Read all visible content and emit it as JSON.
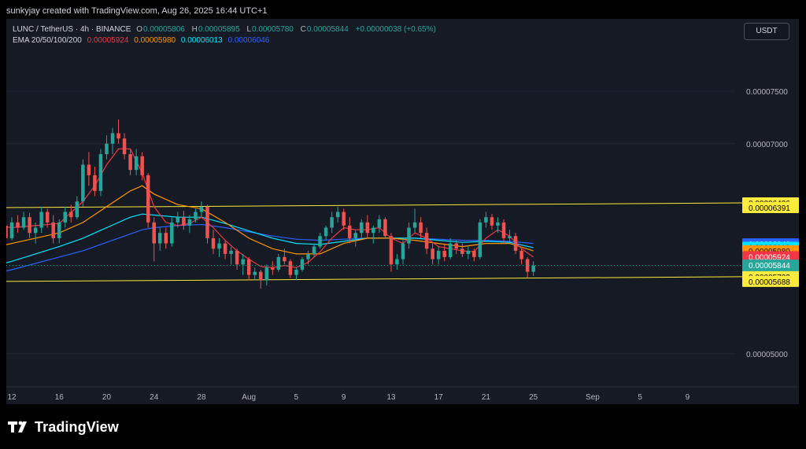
{
  "header": {
    "text": "sunkyjay created with TradingView.com, Aug 26, 2025 16:44 UTC+1"
  },
  "legend": {
    "symbol": "LUNC / TetherUS · 4h · BINANCE",
    "open_label": "O",
    "open": "0.00005806",
    "high_label": "H",
    "high": "0.00005895",
    "low_label": "L",
    "low": "0.00005780",
    "close_label": "C",
    "close": "0.00005844",
    "change": "+0.00000038 (+0.65%)",
    "ema_label": "EMA 20/50/100/200",
    "ema20": "0.00005924",
    "ema50": "0.00005980",
    "ema100": "0.00006013",
    "ema200": "0.00006046"
  },
  "currency_button": "USDT",
  "brand": "TradingView",
  "colors": {
    "background": "#161a25",
    "up": "#26a69a",
    "down": "#ef5350",
    "ema20": "#f23645",
    "ema50": "#ff9800",
    "ema100": "#00e5ff",
    "ema200": "#2962ff",
    "channel": "#ffeb3b"
  },
  "chart_data": {
    "type": "candlestick",
    "symbol": "LUNC / TetherUS",
    "interval": "4h",
    "exchange": "BINANCE",
    "y_ticks": [
      "0.00007500",
      "0.00007000",
      "0.00005000"
    ],
    "x_ticks": [
      "12",
      "16",
      "20",
      "24",
      "28",
      "Aug",
      "5",
      "9",
      "13",
      "17",
      "21",
      "25",
      "Sep",
      "5",
      "9"
    ],
    "price_labels": [
      {
        "value": "0.00006436",
        "kind": "channel",
        "color": "#ffeb3b"
      },
      {
        "value": "0.00006391",
        "kind": "channel",
        "color": "#ffeb3b"
      },
      {
        "value": "0.00006046",
        "kind": "EMA 200",
        "color": "#2962ff"
      },
      {
        "value": "0.00006013",
        "kind": "EMA 100",
        "color": "#00e5ff"
      },
      {
        "value": "0.00005980",
        "kind": "EMA 50",
        "color": "#ff9800"
      },
      {
        "value": "0.00005924",
        "kind": "EMA 20",
        "color": "#f23645"
      },
      {
        "value": "0.00005844",
        "kind": "last price",
        "color": "#26a69a"
      },
      {
        "value": "0.00005733",
        "kind": "channel",
        "color": "#ffeb3b"
      },
      {
        "value": "0.00005688",
        "kind": "channel",
        "color": "#ffeb3b"
      }
    ],
    "countdown": "15:44",
    "channel": {
      "upper": {
        "start": "0.00006391",
        "end": "0.00006436"
      },
      "lower": {
        "start": "0.00005688",
        "end": "0.00005733"
      }
    },
    "candles": [
      {
        "day": 10.0,
        "o": 6.34,
        "h": 6.38,
        "l": 6.03,
        "c": 6.08
      },
      {
        "day": 10.5,
        "o": 6.08,
        "h": 6.2,
        "l": 6.0,
        "c": 6.15
      },
      {
        "day": 11.0,
        "o": 6.15,
        "h": 6.3,
        "l": 6.1,
        "c": 6.22
      },
      {
        "day": 11.5,
        "o": 6.22,
        "h": 6.28,
        "l": 6.05,
        "c": 6.1
      },
      {
        "day": 12.0,
        "o": 6.1,
        "h": 6.3,
        "l": 6.08,
        "c": 6.25
      },
      {
        "day": 12.5,
        "o": 6.25,
        "h": 6.32,
        "l": 6.15,
        "c": 6.2
      },
      {
        "day": 13.0,
        "o": 6.2,
        "h": 6.35,
        "l": 6.18,
        "c": 6.3
      },
      {
        "day": 13.5,
        "o": 6.3,
        "h": 6.34,
        "l": 6.1,
        "c": 6.15
      },
      {
        "day": 14.0,
        "o": 6.15,
        "h": 6.25,
        "l": 6.05,
        "c": 6.2
      },
      {
        "day": 14.5,
        "o": 6.2,
        "h": 6.4,
        "l": 6.15,
        "c": 6.35
      },
      {
        "day": 15.0,
        "o": 6.35,
        "h": 6.38,
        "l": 6.2,
        "c": 6.25
      },
      {
        "day": 15.5,
        "o": 6.25,
        "h": 6.32,
        "l": 6.05,
        "c": 6.1
      },
      {
        "day": 16.0,
        "o": 6.1,
        "h": 6.28,
        "l": 6.05,
        "c": 6.25
      },
      {
        "day": 16.5,
        "o": 6.25,
        "h": 6.4,
        "l": 6.2,
        "c": 6.35
      },
      {
        "day": 17.0,
        "o": 6.35,
        "h": 6.42,
        "l": 6.25,
        "c": 6.3
      },
      {
        "day": 17.5,
        "o": 6.3,
        "h": 6.5,
        "l": 6.28,
        "c": 6.45
      },
      {
        "day": 18.0,
        "o": 6.45,
        "h": 6.85,
        "l": 6.4,
        "c": 6.8
      },
      {
        "day": 18.5,
        "o": 6.8,
        "h": 6.92,
        "l": 6.6,
        "c": 6.7
      },
      {
        "day": 19.0,
        "o": 6.7,
        "h": 6.78,
        "l": 6.5,
        "c": 6.55
      },
      {
        "day": 19.5,
        "o": 6.55,
        "h": 6.95,
        "l": 6.5,
        "c": 6.9
      },
      {
        "day": 20.0,
        "o": 6.9,
        "h": 7.08,
        "l": 6.85,
        "c": 7.0
      },
      {
        "day": 20.5,
        "o": 7.0,
        "h": 7.15,
        "l": 6.9,
        "c": 7.1
      },
      {
        "day": 21.0,
        "o": 7.1,
        "h": 7.23,
        "l": 7.0,
        "c": 7.05
      },
      {
        "day": 21.5,
        "o": 7.05,
        "h": 7.1,
        "l": 6.85,
        "c": 6.9
      },
      {
        "day": 22.0,
        "o": 6.9,
        "h": 6.95,
        "l": 6.7,
        "c": 6.75
      },
      {
        "day": 22.5,
        "o": 6.75,
        "h": 6.95,
        "l": 6.7,
        "c": 6.88
      },
      {
        "day": 23.0,
        "o": 6.88,
        "h": 6.92,
        "l": 6.65,
        "c": 6.7
      },
      {
        "day": 23.5,
        "o": 6.7,
        "h": 6.72,
        "l": 6.2,
        "c": 6.25
      },
      {
        "day": 24.0,
        "o": 6.25,
        "h": 6.3,
        "l": 5.88,
        "c": 6.05
      },
      {
        "day": 24.5,
        "o": 6.05,
        "h": 6.2,
        "l": 5.98,
        "c": 6.15
      },
      {
        "day": 25.0,
        "o": 6.15,
        "h": 6.2,
        "l": 6.0,
        "c": 6.05
      },
      {
        "day": 25.5,
        "o": 6.05,
        "h": 6.3,
        "l": 6.02,
        "c": 6.25
      },
      {
        "day": 26.0,
        "o": 6.25,
        "h": 6.35,
        "l": 6.2,
        "c": 6.3
      },
      {
        "day": 26.5,
        "o": 6.3,
        "h": 6.36,
        "l": 6.18,
        "c": 6.22
      },
      {
        "day": 27.0,
        "o": 6.22,
        "h": 6.32,
        "l": 6.15,
        "c": 6.28
      },
      {
        "day": 27.5,
        "o": 6.28,
        "h": 6.38,
        "l": 6.25,
        "c": 6.35
      },
      {
        "day": 28.0,
        "o": 6.35,
        "h": 6.45,
        "l": 6.3,
        "c": 6.4
      },
      {
        "day": 28.5,
        "o": 6.4,
        "h": 6.42,
        "l": 6.05,
        "c": 6.1
      },
      {
        "day": 29.0,
        "o": 6.1,
        "h": 6.18,
        "l": 5.95,
        "c": 6.0
      },
      {
        "day": 29.5,
        "o": 6.0,
        "h": 6.1,
        "l": 5.92,
        "c": 6.05
      },
      {
        "day": 30.0,
        "o": 6.05,
        "h": 6.08,
        "l": 5.9,
        "c": 5.95
      },
      {
        "day": 30.5,
        "o": 5.95,
        "h": 6.02,
        "l": 5.85,
        "c": 5.98
      },
      {
        "day": 31.0,
        "o": 5.98,
        "h": 6.0,
        "l": 5.8,
        "c": 5.85
      },
      {
        "day": 31.5,
        "o": 5.85,
        "h": 5.95,
        "l": 5.75,
        "c": 5.9
      },
      {
        "day": 32.0,
        "o": 5.9,
        "h": 5.92,
        "l": 5.7,
        "c": 5.75
      },
      {
        "day": 32.5,
        "o": 5.75,
        "h": 5.82,
        "l": 5.7,
        "c": 5.78
      },
      {
        "day": 33.0,
        "o": 5.78,
        "h": 5.8,
        "l": 5.62,
        "c": 5.7
      },
      {
        "day": 33.5,
        "o": 5.7,
        "h": 5.85,
        "l": 5.65,
        "c": 5.82
      },
      {
        "day": 34.0,
        "o": 5.82,
        "h": 5.88,
        "l": 5.75,
        "c": 5.8
      },
      {
        "day": 34.5,
        "o": 5.8,
        "h": 5.95,
        "l": 5.78,
        "c": 5.92
      },
      {
        "day": 35.0,
        "o": 5.92,
        "h": 6.0,
        "l": 5.85,
        "c": 5.88
      },
      {
        "day": 35.5,
        "o": 5.88,
        "h": 5.9,
        "l": 5.72,
        "c": 5.75
      },
      {
        "day": 36.0,
        "o": 5.75,
        "h": 5.82,
        "l": 5.7,
        "c": 5.8
      },
      {
        "day": 36.5,
        "o": 5.8,
        "h": 5.92,
        "l": 5.78,
        "c": 5.9
      },
      {
        "day": 37.0,
        "o": 5.9,
        "h": 5.98,
        "l": 5.85,
        "c": 5.95
      },
      {
        "day": 37.5,
        "o": 5.95,
        "h": 6.05,
        "l": 5.92,
        "c": 6.02
      },
      {
        "day": 38.0,
        "o": 6.02,
        "h": 6.15,
        "l": 6.0,
        "c": 6.12
      },
      {
        "day": 38.5,
        "o": 6.12,
        "h": 6.22,
        "l": 6.08,
        "c": 6.2
      },
      {
        "day": 39.0,
        "o": 6.2,
        "h": 6.35,
        "l": 6.15,
        "c": 6.3
      },
      {
        "day": 39.5,
        "o": 6.3,
        "h": 6.4,
        "l": 6.25,
        "c": 6.35
      },
      {
        "day": 40.0,
        "o": 6.35,
        "h": 6.38,
        "l": 6.18,
        "c": 6.22
      },
      {
        "day": 40.5,
        "o": 6.22,
        "h": 6.3,
        "l": 6.05,
        "c": 6.1
      },
      {
        "day": 41.0,
        "o": 6.1,
        "h": 6.18,
        "l": 6.02,
        "c": 6.15
      },
      {
        "day": 41.5,
        "o": 6.15,
        "h": 6.28,
        "l": 6.1,
        "c": 6.25
      },
      {
        "day": 42.0,
        "o": 6.25,
        "h": 6.32,
        "l": 6.1,
        "c": 6.15
      },
      {
        "day": 42.5,
        "o": 6.15,
        "h": 6.22,
        "l": 6.05,
        "c": 6.2
      },
      {
        "day": 43.0,
        "o": 6.2,
        "h": 6.32,
        "l": 6.15,
        "c": 6.28
      },
      {
        "day": 43.5,
        "o": 6.28,
        "h": 6.3,
        "l": 6.1,
        "c": 6.12
      },
      {
        "day": 44.0,
        "o": 6.12,
        "h": 6.15,
        "l": 5.78,
        "c": 5.85
      },
      {
        "day": 44.5,
        "o": 5.85,
        "h": 5.95,
        "l": 5.8,
        "c": 5.9
      },
      {
        "day": 45.0,
        "o": 5.9,
        "h": 6.1,
        "l": 5.85,
        "c": 6.05
      },
      {
        "day": 45.5,
        "o": 6.05,
        "h": 6.25,
        "l": 6.0,
        "c": 6.2
      },
      {
        "day": 46.0,
        "o": 6.2,
        "h": 6.38,
        "l": 6.15,
        "c": 6.25
      },
      {
        "day": 46.5,
        "o": 6.25,
        "h": 6.3,
        "l": 6.1,
        "c": 6.15
      },
      {
        "day": 47.0,
        "o": 6.15,
        "h": 6.2,
        "l": 5.95,
        "c": 6.0
      },
      {
        "day": 47.5,
        "o": 6.0,
        "h": 6.05,
        "l": 5.85,
        "c": 5.9
      },
      {
        "day": 48.0,
        "o": 5.9,
        "h": 6.02,
        "l": 5.85,
        "c": 5.98
      },
      {
        "day": 48.5,
        "o": 5.98,
        "h": 6.05,
        "l": 5.88,
        "c": 5.92
      },
      {
        "day": 49.0,
        "o": 5.92,
        "h": 6.1,
        "l": 5.9,
        "c": 6.05
      },
      {
        "day": 49.5,
        "o": 6.05,
        "h": 6.08,
        "l": 5.95,
        "c": 6.0
      },
      {
        "day": 50.0,
        "o": 6.0,
        "h": 6.05,
        "l": 5.92,
        "c": 5.95
      },
      {
        "day": 50.5,
        "o": 5.95,
        "h": 6.02,
        "l": 5.9,
        "c": 5.98
      },
      {
        "day": 51.0,
        "o": 5.98,
        "h": 6.0,
        "l": 5.88,
        "c": 5.92
      },
      {
        "day": 51.5,
        "o": 5.92,
        "h": 6.28,
        "l": 5.9,
        "c": 6.25
      },
      {
        "day": 52.0,
        "o": 6.25,
        "h": 6.35,
        "l": 6.2,
        "c": 6.3
      },
      {
        "day": 52.5,
        "o": 6.3,
        "h": 6.33,
        "l": 6.18,
        "c": 6.22
      },
      {
        "day": 53.0,
        "o": 6.22,
        "h": 6.3,
        "l": 6.15,
        "c": 6.25
      },
      {
        "day": 53.5,
        "o": 6.25,
        "h": 6.28,
        "l": 6.05,
        "c": 6.1
      },
      {
        "day": 54.0,
        "o": 6.1,
        "h": 6.18,
        "l": 6.05,
        "c": 6.12
      },
      {
        "day": 54.5,
        "o": 6.12,
        "h": 6.15,
        "l": 5.95,
        "c": 5.98
      },
      {
        "day": 55.0,
        "o": 5.98,
        "h": 6.0,
        "l": 5.85,
        "c": 5.9
      },
      {
        "day": 55.5,
        "o": 5.9,
        "h": 5.92,
        "l": 5.72,
        "c": 5.78
      },
      {
        "day": 56.0,
        "o": 5.78,
        "h": 5.88,
        "l": 5.74,
        "c": 5.84
      }
    ],
    "ema20": [
      [
        10,
        6.23
      ],
      [
        12,
        6.2
      ],
      [
        14,
        6.22
      ],
      [
        16,
        6.24
      ],
      [
        18,
        6.45
      ],
      [
        19,
        6.6
      ],
      [
        20,
        6.8
      ],
      [
        21,
        6.95
      ],
      [
        22,
        6.95
      ],
      [
        23,
        6.72
      ],
      [
        24,
        6.4
      ],
      [
        25,
        6.25
      ],
      [
        26,
        6.22
      ],
      [
        27,
        6.24
      ],
      [
        28,
        6.3
      ],
      [
        29,
        6.2
      ],
      [
        30,
        6.08
      ],
      [
        31,
        5.98
      ],
      [
        32,
        5.9
      ],
      [
        33,
        5.83
      ],
      [
        34,
        5.82
      ],
      [
        35,
        5.84
      ],
      [
        36,
        5.82
      ],
      [
        37,
        5.87
      ],
      [
        38,
        5.97
      ],
      [
        39,
        6.1
      ],
      [
        40,
        6.2
      ],
      [
        41,
        6.18
      ],
      [
        42,
        6.18
      ],
      [
        43,
        6.2
      ],
      [
        44,
        6.1
      ],
      [
        45,
        6.05
      ],
      [
        46,
        6.15
      ],
      [
        47,
        6.1
      ],
      [
        48,
        6.02
      ],
      [
        49,
        6.0
      ],
      [
        50,
        5.98
      ],
      [
        51,
        5.97
      ],
      [
        52,
        6.1
      ],
      [
        53,
        6.18
      ],
      [
        54,
        6.12
      ],
      [
        55,
        6.0
      ],
      [
        56,
        5.92
      ]
    ],
    "ema50": [
      [
        10,
        6.0
      ],
      [
        12,
        6.05
      ],
      [
        14,
        6.1
      ],
      [
        16,
        6.15
      ],
      [
        18,
        6.25
      ],
      [
        20,
        6.4
      ],
      [
        22,
        6.55
      ],
      [
        23,
        6.6
      ],
      [
        24,
        6.52
      ],
      [
        26,
        6.42
      ],
      [
        28,
        6.38
      ],
      [
        30,
        6.25
      ],
      [
        32,
        6.1
      ],
      [
        34,
        6.0
      ],
      [
        36,
        5.95
      ],
      [
        38,
        5.95
      ],
      [
        40,
        6.05
      ],
      [
        42,
        6.1
      ],
      [
        44,
        6.1
      ],
      [
        46,
        6.08
      ],
      [
        48,
        6.05
      ],
      [
        50,
        6.02
      ],
      [
        52,
        6.05
      ],
      [
        54,
        6.05
      ],
      [
        56,
        5.98
      ]
    ],
    "ema100": [
      [
        10,
        5.82
      ],
      [
        12,
        5.88
      ],
      [
        14,
        5.95
      ],
      [
        16,
        6.02
      ],
      [
        18,
        6.1
      ],
      [
        20,
        6.2
      ],
      [
        22,
        6.3
      ],
      [
        23,
        6.33
      ],
      [
        24,
        6.32
      ],
      [
        26,
        6.3
      ],
      [
        28,
        6.3
      ],
      [
        30,
        6.24
      ],
      [
        32,
        6.17
      ],
      [
        34,
        6.1
      ],
      [
        36,
        6.05
      ],
      [
        38,
        6.04
      ],
      [
        40,
        6.07
      ],
      [
        42,
        6.1
      ],
      [
        44,
        6.1
      ],
      [
        46,
        6.1
      ],
      [
        48,
        6.08
      ],
      [
        50,
        6.06
      ],
      [
        52,
        6.07
      ],
      [
        54,
        6.06
      ],
      [
        56,
        6.01
      ]
    ],
    "ema200": [
      [
        10,
        5.75
      ],
      [
        12,
        5.8
      ],
      [
        14,
        5.86
      ],
      [
        16,
        5.92
      ],
      [
        18,
        5.98
      ],
      [
        20,
        6.06
      ],
      [
        22,
        6.14
      ],
      [
        23,
        6.18
      ],
      [
        24,
        6.2
      ],
      [
        26,
        6.22
      ],
      [
        28,
        6.23
      ],
      [
        30,
        6.2
      ],
      [
        32,
        6.16
      ],
      [
        34,
        6.12
      ],
      [
        36,
        6.09
      ],
      [
        38,
        6.08
      ],
      [
        40,
        6.09
      ],
      [
        42,
        6.1
      ],
      [
        44,
        6.1
      ],
      [
        46,
        6.1
      ],
      [
        48,
        6.09
      ],
      [
        50,
        6.08
      ],
      [
        52,
        6.08
      ],
      [
        54,
        6.07
      ],
      [
        56,
        6.05
      ]
    ]
  }
}
